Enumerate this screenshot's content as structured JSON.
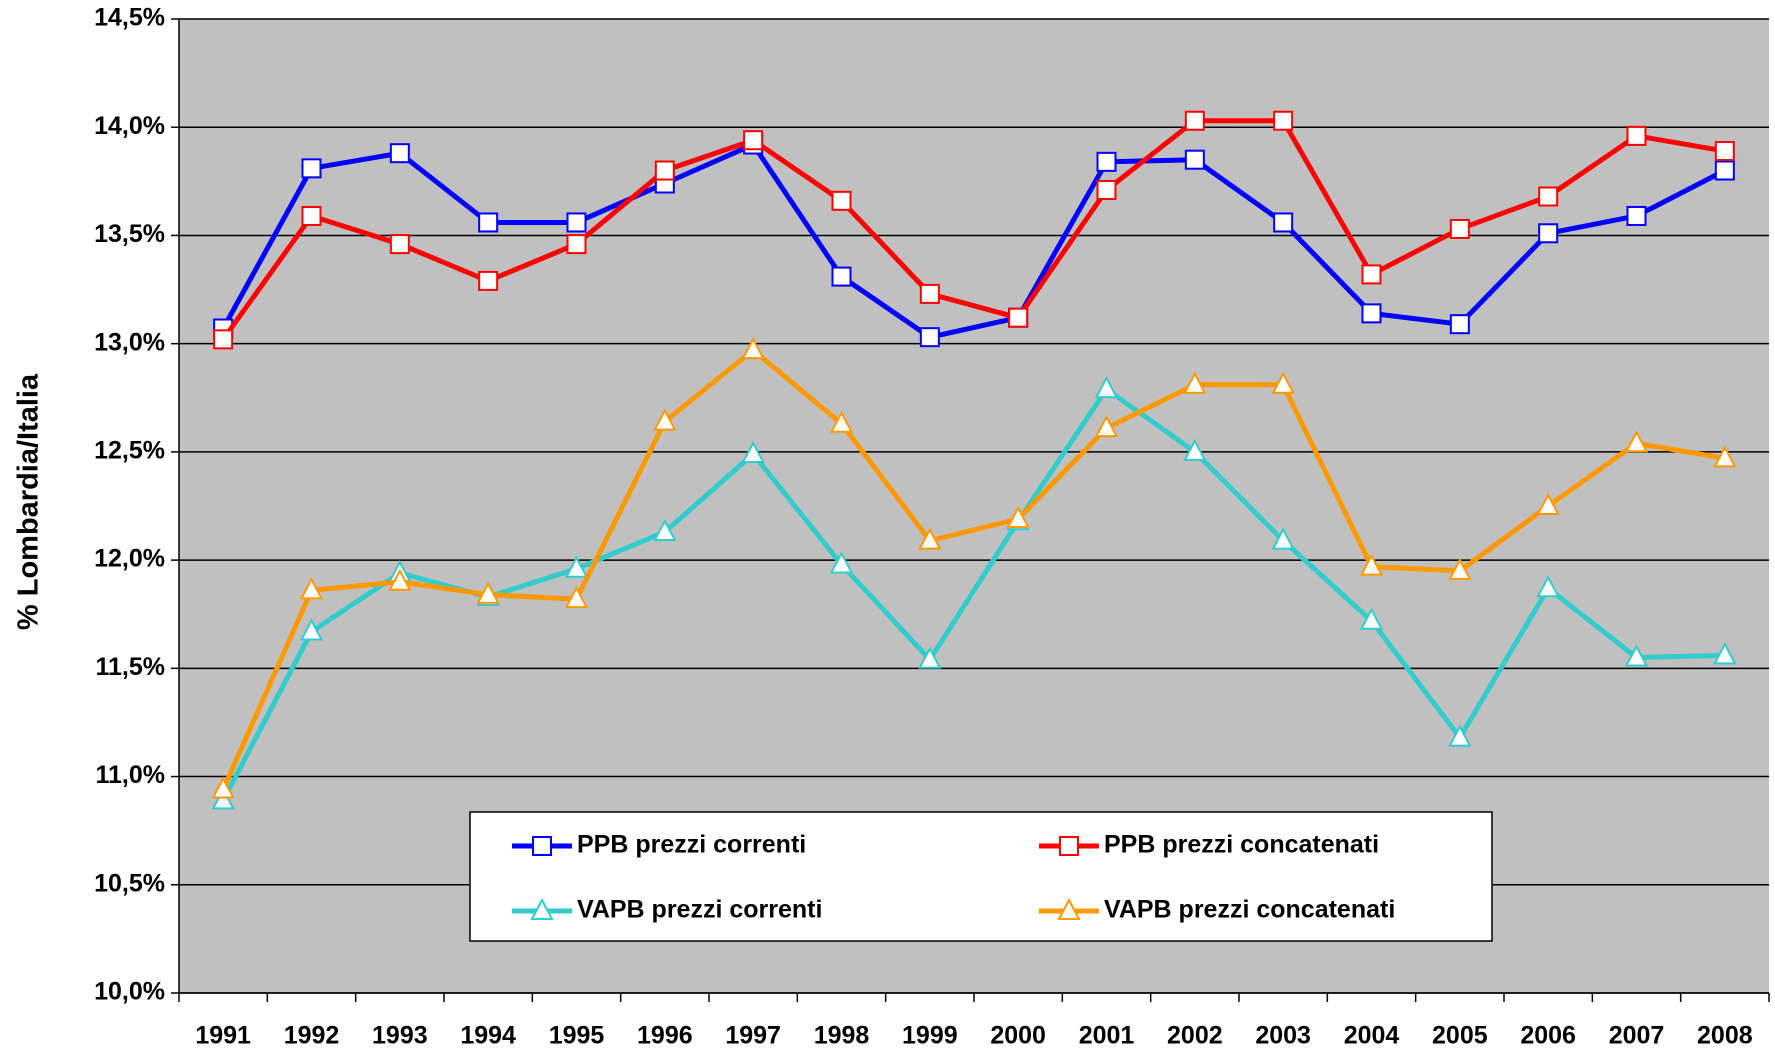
{
  "chart_data": {
    "type": "line",
    "y_label": "% Lombardia/Italia",
    "categories": [
      "1991",
      "1992",
      "1993",
      "1994",
      "1995",
      "1996",
      "1997",
      "1998",
      "1999",
      "2000",
      "2001",
      "2002",
      "2003",
      "2004",
      "2005",
      "2006",
      "2007",
      "2008"
    ],
    "series": [
      {
        "name": "PPB prezzi correnti",
        "color": "#0000ff",
        "marker": "square",
        "values": [
          13.07,
          13.81,
          13.88,
          13.56,
          13.56,
          13.74,
          13.92,
          13.31,
          13.03,
          13.12,
          13.84,
          13.85,
          13.56,
          13.14,
          13.09,
          13.51,
          13.59,
          13.8
        ]
      },
      {
        "name": "PPB prezzi concatenati",
        "color": "#ff0000",
        "marker": "square",
        "values": [
          13.02,
          13.59,
          13.46,
          13.29,
          13.46,
          13.8,
          13.94,
          13.66,
          13.23,
          13.12,
          13.71,
          14.03,
          14.03,
          13.32,
          13.53,
          13.68,
          13.96,
          13.89
        ]
      },
      {
        "name": "VAPB prezzi correnti",
        "color": "#33cccc",
        "marker": "triangle",
        "values": [
          10.89,
          11.67,
          11.94,
          11.83,
          11.96,
          12.13,
          12.49,
          11.98,
          11.54,
          12.18,
          12.79,
          12.5,
          12.09,
          11.72,
          11.18,
          11.87,
          11.55,
          11.56
        ]
      },
      {
        "name": "VAPB prezzi concatenati",
        "color": "#ff9900",
        "marker": "triangle",
        "values": [
          10.94,
          11.86,
          11.9,
          11.84,
          11.82,
          12.64,
          12.97,
          12.63,
          12.09,
          12.19,
          12.61,
          12.81,
          12.81,
          11.97,
          11.95,
          12.25,
          12.54,
          12.47
        ]
      }
    ],
    "ylim": [
      10.0,
      14.5
    ],
    "yticks": [
      {
        "value": 10.0,
        "label": "10,0%"
      },
      {
        "value": 10.5,
        "label": "10,5%"
      },
      {
        "value": 11.0,
        "label": "11,0%"
      },
      {
        "value": 11.5,
        "label": "11,5%"
      },
      {
        "value": 12.0,
        "label": "12,0%"
      },
      {
        "value": 12.5,
        "label": "12,5%"
      },
      {
        "value": 13.0,
        "label": "13,0%"
      },
      {
        "value": 13.5,
        "label": "13,5%"
      },
      {
        "value": 14.0,
        "label": "14,0%"
      },
      {
        "value": 14.5,
        "label": "14,5%"
      }
    ],
    "grid": true,
    "legend": "bottom"
  }
}
